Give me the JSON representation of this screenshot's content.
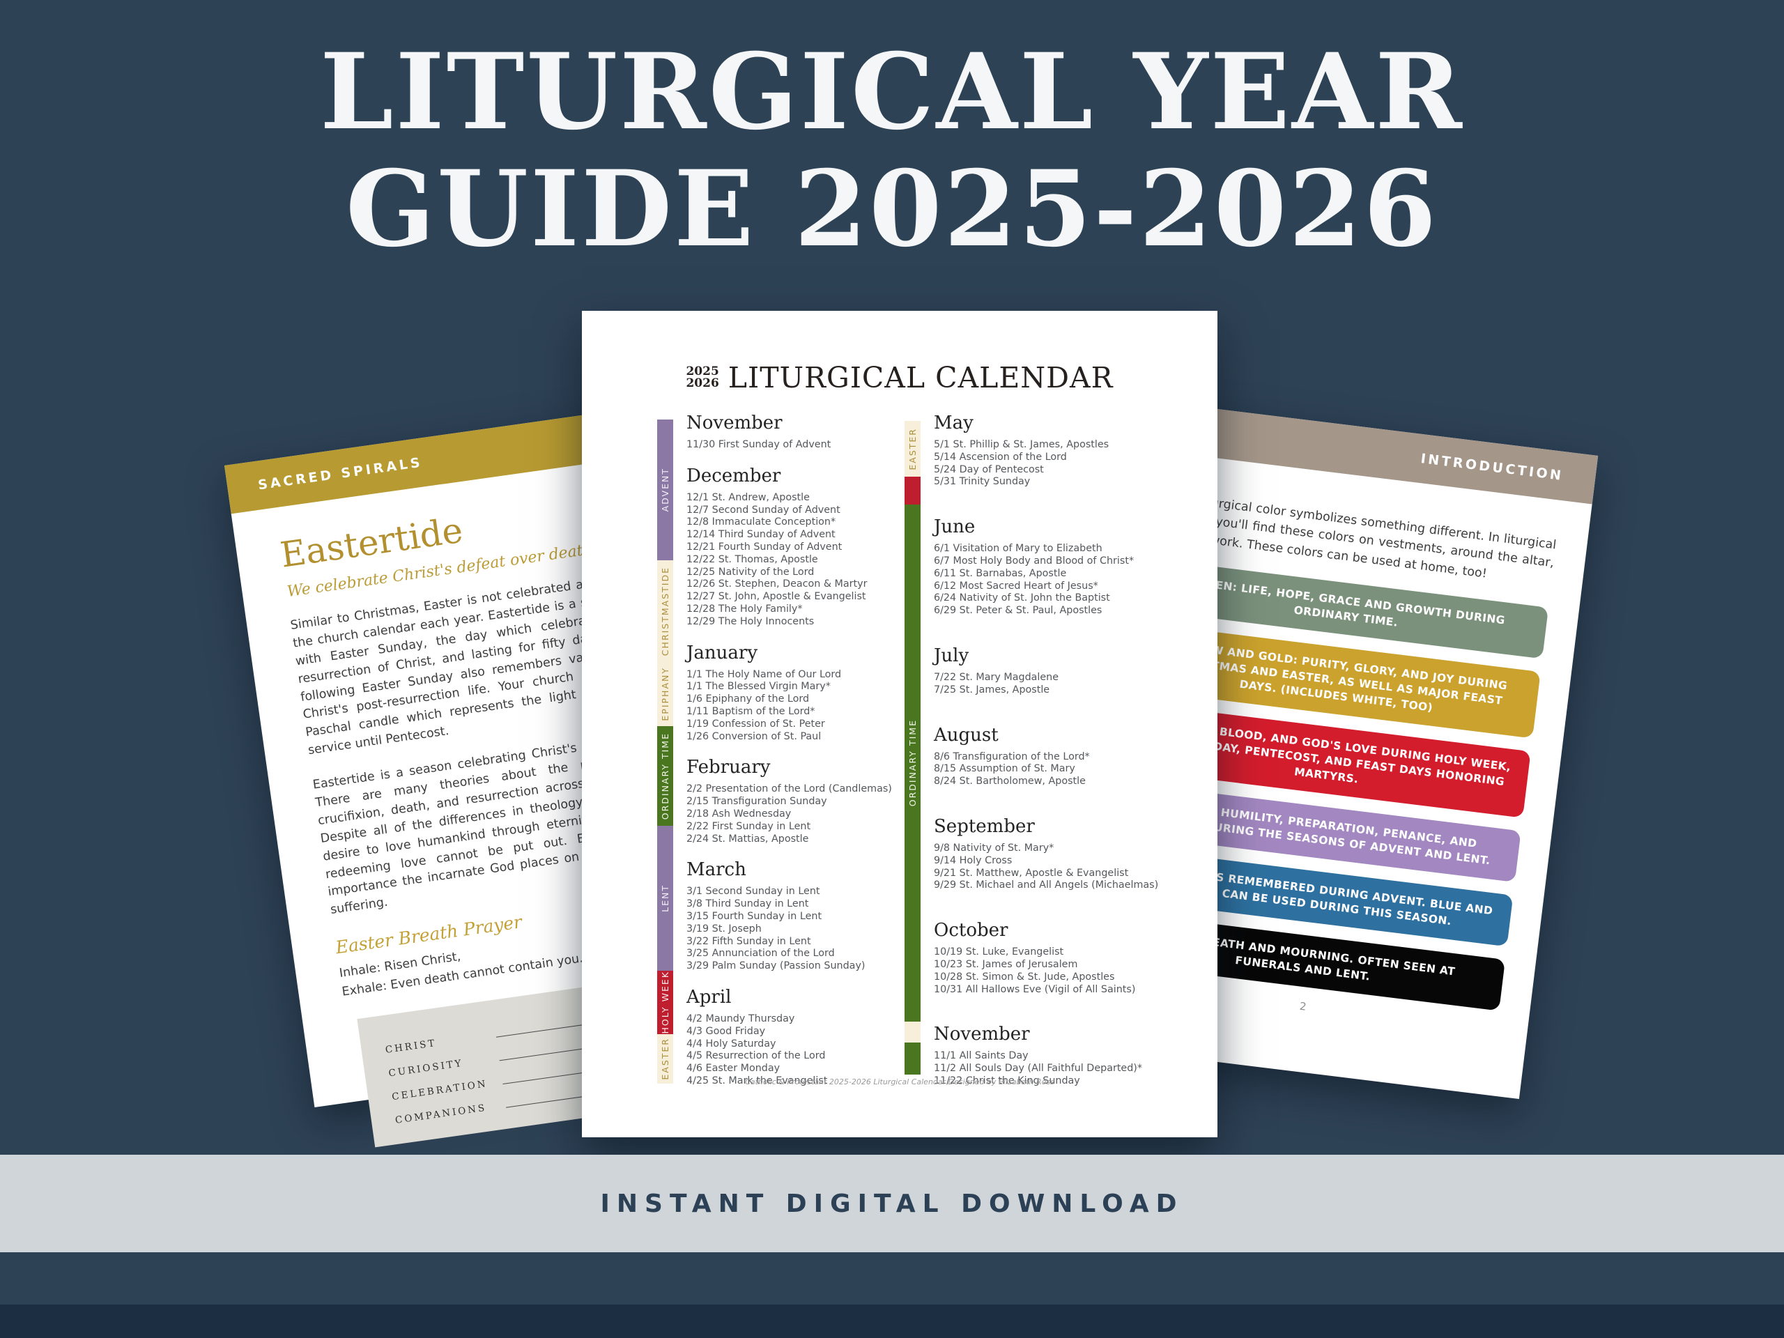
{
  "colors": {
    "background_navy": "#2e4256",
    "hero_text": "#f4f6f7",
    "gold_band": "#b79a31",
    "taupe_band": "#a49689",
    "ribbon_purple": "#8c78a5",
    "ribbon_cream": "#f7efda",
    "ribbon_green": "#49761e",
    "ribbon_red": "#bf1e2e",
    "block_green": "#7b917c",
    "block_gold": "#cba22d",
    "block_red": "#d31d2d",
    "block_purple": "#a287c0",
    "block_blue": "#2e71a0",
    "block_black": "#070707",
    "bottom_band_gray": "#d0d5d9"
  },
  "hero": {
    "line1": "LITURGICAL YEAR",
    "line2": "GUIDE 2025-2026"
  },
  "bottom_banner": {
    "label": "INSTANT DIGITAL DOWNLOAD"
  },
  "calendar_page": {
    "year_top": "2025",
    "year_bottom": "2026",
    "title": "LITURGICAL CALENDAR",
    "footer": "Catholic & Protestant 2025-2026 Liturgical Calendar Designed by Elizabeth Ross",
    "left_ribbon": [
      {
        "label": "ADVENT"
      },
      {
        "label": "CHRISTMASTIDE"
      },
      {
        "label": "EPIPHANY"
      },
      {
        "label": "ORDINARY TIME"
      },
      {
        "label": "LENT"
      },
      {
        "label": "HOLY WEEK"
      },
      {
        "label": "EASTER"
      }
    ],
    "right_ribbon": [
      {
        "label": "EASTER"
      },
      {
        "label": "ORDINARY TIME"
      }
    ],
    "left_months": [
      {
        "name": "November",
        "entries": [
          "11/30 First Sunday of Advent"
        ]
      },
      {
        "name": "December",
        "entries": [
          "12/1 St. Andrew, Apostle",
          "12/7 Second Sunday of Advent",
          "12/8 Immaculate Conception*",
          "12/14 Third Sunday of Advent",
          "12/21 Fourth Sunday of Advent",
          "12/22 St. Thomas, Apostle",
          "12/25 Nativity of the Lord",
          "12/26 St. Stephen, Deacon & Martyr",
          "12/27 St. John, Apostle & Evangelist",
          "12/28 The Holy Family*",
          "12/29 The Holy Innocents"
        ]
      },
      {
        "name": "January",
        "entries": [
          "1/1 The Holy Name of Our Lord",
          "1/1 The Blessed Virgin Mary*",
          "1/6 Epiphany of the Lord",
          "1/11 Baptism of the Lord*",
          "1/19 Confession of St. Peter",
          "1/26 Conversion of St. Paul"
        ]
      },
      {
        "name": "February",
        "entries": [
          "2/2 Presentation of the Lord (Candlemas)",
          "2/15 Transfiguration Sunday",
          "2/18 Ash Wednesday",
          "2/22 First Sunday in Lent",
          "2/24 St. Mattias, Apostle"
        ]
      },
      {
        "name": "March",
        "entries": [
          "3/1 Second Sunday in Lent",
          "3/8 Third Sunday in Lent",
          "3/15 Fourth Sunday in Lent",
          "3/19 St. Joseph",
          "3/22 Fifth Sunday in Lent",
          "3/25 Annunciation of the Lord",
          "3/29 Palm Sunday (Passion Sunday)"
        ]
      },
      {
        "name": "April",
        "entries": [
          "4/2 Maundy Thursday",
          "4/3 Good Friday",
          "4/4 Holy Saturday",
          "4/5 Resurrection of the Lord",
          "4/6 Easter Monday",
          "4/25 St. Mark the Evangelist"
        ]
      }
    ],
    "right_months": [
      {
        "name": "May",
        "entries": [
          "5/1 St. Phillip & St. James, Apostles",
          "5/14 Ascension of the Lord",
          "5/24 Day of Pentecost",
          "5/31 Trinity Sunday"
        ]
      },
      {
        "name": "June",
        "entries": [
          "6/1 Visitation of Mary to Elizabeth",
          "6/7 Most Holy Body and Blood of Christ*",
          "6/11 St. Barnabas, Apostle",
          "6/12 Most Sacred Heart of Jesus*",
          "6/24 Nativity of St. John the Baptist",
          "6/29 St. Peter & St. Paul, Apostles"
        ]
      },
      {
        "name": "July",
        "entries": [
          "7/22 St. Mary Magdalene",
          "7/25 St. James, Apostle"
        ]
      },
      {
        "name": "August",
        "entries": [
          "8/6 Transfiguration of the Lord*",
          "8/15 Assumption of St. Mary",
          "8/24 St. Bartholomew, Apostle"
        ]
      },
      {
        "name": "September",
        "entries": [
          "9/8 Nativity of St. Mary*",
          "9/14 Holy Cross",
          "9/21 St. Matthew, Apostle & Evangelist",
          "9/29 St. Michael and All Angels (Michaelmas)"
        ]
      },
      {
        "name": "October",
        "entries": [
          "10/19 St. Luke, Evangelist",
          "10/23 St. James of Jerusalem",
          "10/28 St. Simon & St. Jude, Apostles",
          "10/31 All Hallows Eve (Vigil of All Saints)"
        ]
      },
      {
        "name": "November",
        "entries": [
          "11/1 All Saints Day",
          "11/2 All Souls Day (All Faithful Departed)*",
          "11/22 Christ the King Sunday"
        ]
      }
    ]
  },
  "eastertide_page": {
    "header": "SACRED SPIRALS",
    "title": "Eastertide",
    "subtitle": "We celebrate Christ's defeat over death.",
    "paragraph1": "Similar to Christmas, Easter is not celebrated as a single day in the church calendar each year. Eastertide is a season beginning with Easter Sunday, the day which celebrates the glorious resurrection of Christ, and lasting for fifty days. Each Sunday following Easter Sunday also remembers various elements of Christ's post-resurrection life. Your church may light a large Paschal candle which represents the light of Christ at every service until Pentecost.",
    "paragraph2": "Eastertide is a season celebrating Christ's triumph over death. There are many theories about the purpose of Christ's crucifixion, death, and resurrection across Christian traditions. Despite all of the differences in theology, all center on God's desire to love humankind through eternity. The light of God's redeeming love cannot be put out. Eastertide honors the importance the incarnate God places on power over death and suffering.",
    "prayer_title": "Easter Breath Prayer",
    "inhale": "Inhale: Risen Christ,",
    "exhale": "Exhale: Even death cannot contain you.",
    "worksheet_rows": [
      {
        "label": "CHRIST"
      },
      {
        "label": "CURIOSITY"
      },
      {
        "label": "CELEBRATION"
      },
      {
        "label": "COMPANIONS"
      }
    ]
  },
  "introduction_page": {
    "header": "INTRODUCTION",
    "paragraph": "Each liturgical color symbolizes something different. In liturgical worship you'll find these colors on vestments, around the altar, or in artwork. These colors can be used at home, too!",
    "blocks": [
      {
        "color_name": "green",
        "text": "GREEN: LIFE, HOPE, GRACE AND GROWTH DURING ORDINARY TIME."
      },
      {
        "color_name": "gold",
        "text": "YELLOW AND GOLD: PURITY, GLORY, AND JOY DURING CHRISTMAS AND EASTER, AS WELL AS MAJOR FEAST DAYS. (INCLUDES WHITE, TOO)"
      },
      {
        "color_name": "red",
        "text": "RED: FIRE, BLOOD, AND GOD'S LOVE DURING HOLY WEEK, GOOD FRIDAY, PENTECOST, AND FEAST DAYS HONORING MARTYRS."
      },
      {
        "color_name": "purple",
        "text": "PURPLE: HUMILITY, PREPARATION, PENANCE, AND ROYALTY DURING THE SEASONS OF ADVENT AND LENT."
      },
      {
        "color_name": "blue",
        "text": "BLUE: MARY IS REMEMBERED DURING ADVENT. BLUE AND PURPLE CAN BE USED DURING THIS SEASON."
      },
      {
        "color_name": "black",
        "text": "BLACK: DEATH AND MOURNING. OFTEN SEEN AT FUNERALS AND LENT."
      }
    ],
    "page_number": "2"
  }
}
